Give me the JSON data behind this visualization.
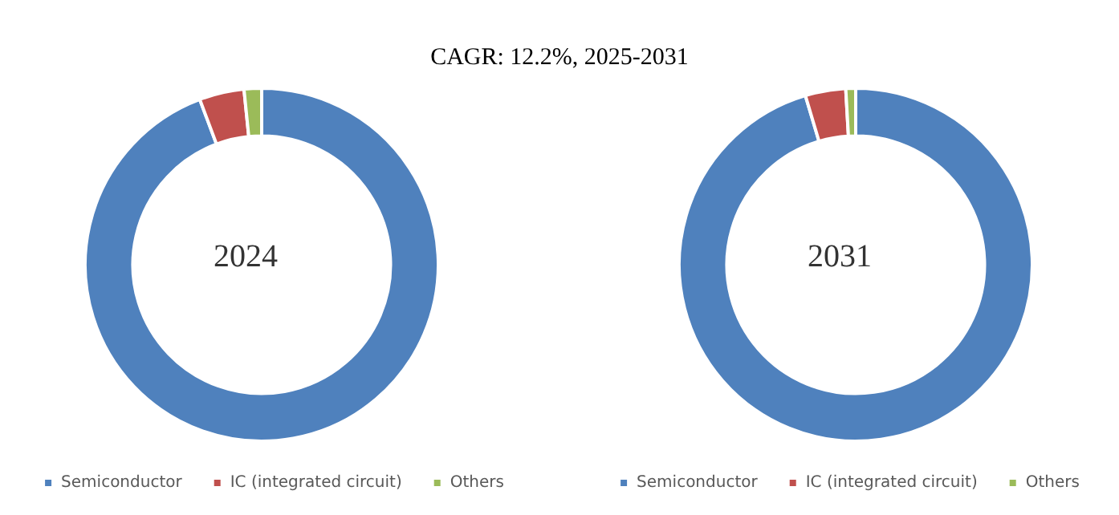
{
  "chart_data": [
    {
      "type": "donut",
      "title": "CAGR:  12.2%, 2025-2031",
      "annotations": [
        "2024"
      ],
      "categories": [
        "Semiconductor",
        "IC (integrated circuit)",
        "Others"
      ],
      "values": [
        94.3,
        4.1,
        1.6
      ],
      "colors": [
        "#4f81bd",
        "#c0504d",
        "#9bbb59"
      ],
      "legend": "bottom"
    },
    {
      "type": "donut",
      "annotations": [
        "2031"
      ],
      "categories": [
        "Semiconductor",
        "IC (integrated circuit)",
        "Others"
      ],
      "values": [
        95.4,
        3.7,
        0.9
      ],
      "colors": [
        "#4f81bd",
        "#c0504d",
        "#9bbb59"
      ],
      "legend": "bottom"
    }
  ]
}
